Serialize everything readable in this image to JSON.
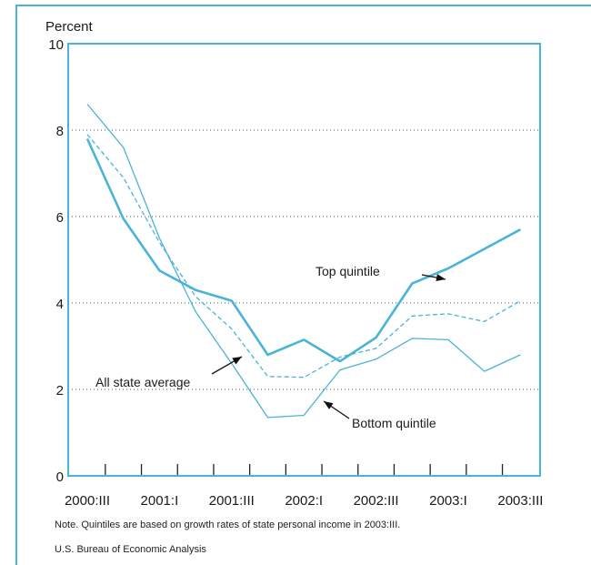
{
  "chart_data": {
    "type": "line",
    "ylabel": "Percent",
    "ylim": [
      0,
      10
    ],
    "yticks": [
      0,
      2,
      4,
      6,
      8,
      10
    ],
    "x": [
      "2000:III",
      "2000:IV",
      "2001:I",
      "2001:II",
      "2001:III",
      "2001:IV",
      "2002:I",
      "2002:II",
      "2002:III",
      "2002:IV",
      "2003:I",
      "2003:II",
      "2003:III"
    ],
    "xtick_labels": [
      "2000:III",
      "2001:I",
      "2001:III",
      "2002:I",
      "2002:III",
      "2003:I",
      "2003:III"
    ],
    "grid": "horizontal dotted",
    "series": [
      {
        "name": "Top quintile",
        "style": "solid-thick",
        "color": "#4ab3d8",
        "values": [
          7.8,
          5.95,
          4.75,
          4.3,
          4.05,
          2.8,
          3.15,
          2.65,
          3.2,
          4.45,
          4.8,
          5.25,
          5.7
        ]
      },
      {
        "name": "All state average",
        "style": "dashed",
        "color": "#4ab3d8",
        "values": [
          7.9,
          6.9,
          5.4,
          4.15,
          3.4,
          2.3,
          2.28,
          2.75,
          2.95,
          3.7,
          3.75,
          3.57,
          4.05
        ]
      },
      {
        "name": "Bottom quintile",
        "style": "solid-thin",
        "color": "#4ab3d8",
        "values": [
          8.6,
          7.6,
          5.5,
          3.8,
          2.6,
          1.35,
          1.4,
          2.45,
          2.7,
          3.18,
          3.15,
          2.42,
          2.8
        ]
      }
    ],
    "annotations": [
      "Top quintile",
      "All state average",
      "Bottom quintile"
    ]
  },
  "notes": {
    "note": "Note. Quintiles are based on growth rates of state personal income in 2003:III.",
    "source": "U.S. Bureau of Economic Analysis"
  }
}
